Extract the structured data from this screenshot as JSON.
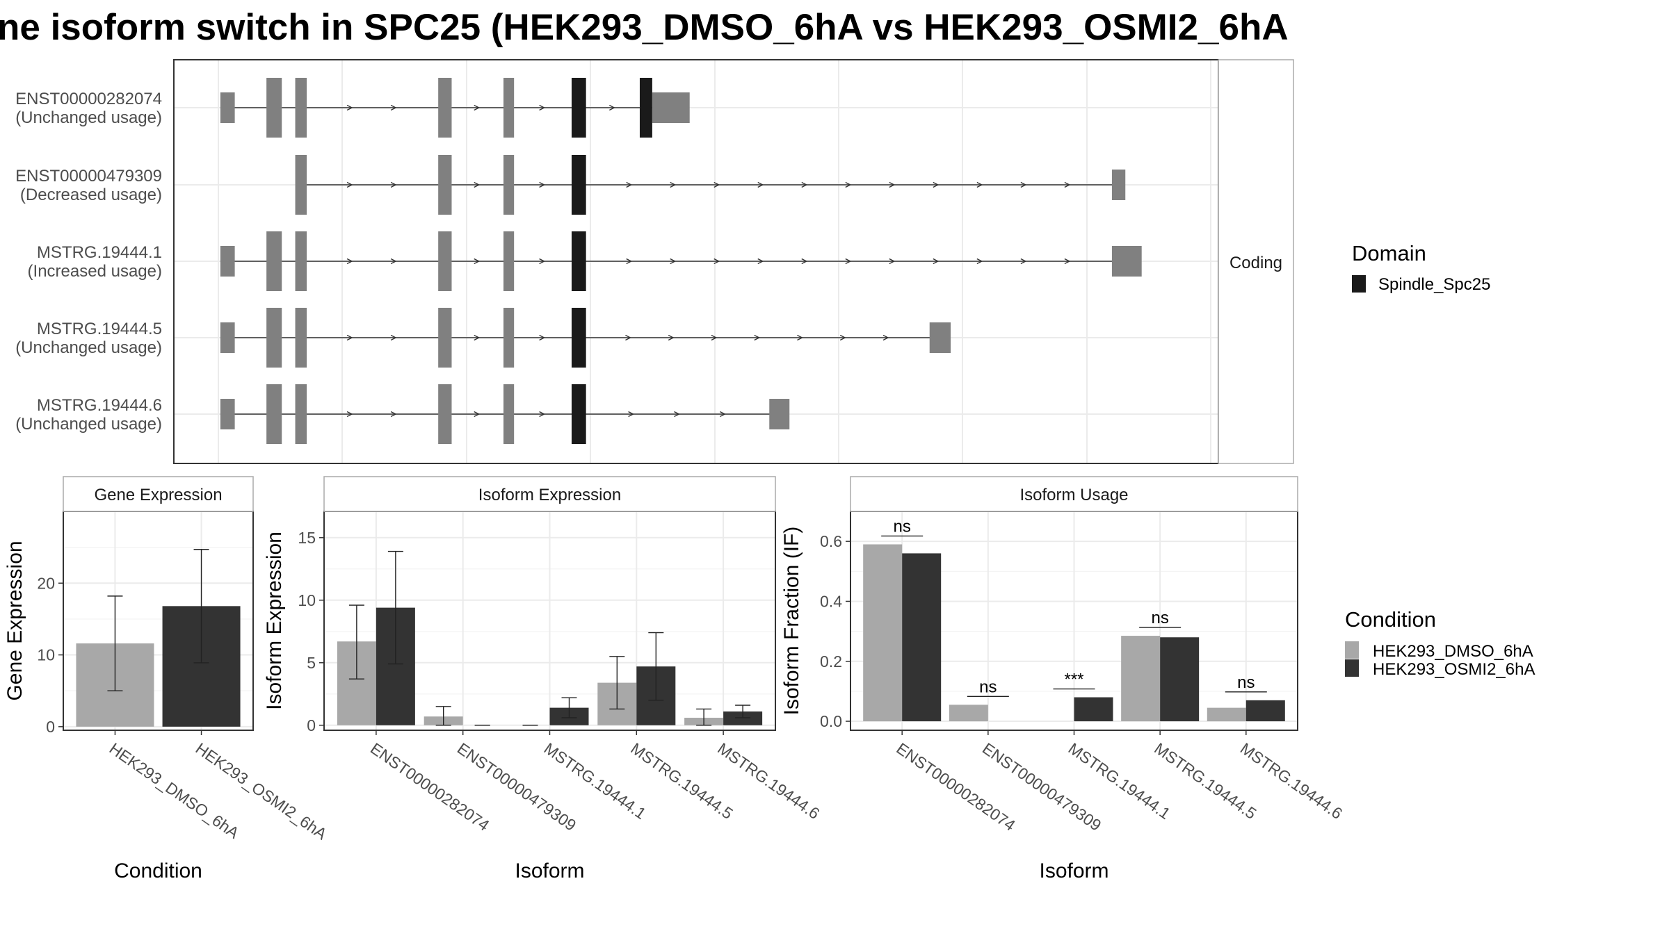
{
  "title": "ne isoform switch in SPC25 (HEK293_DMSO_6hA vs HEK293_OSMI2_6hA",
  "colors": {
    "dmso": "#a8a8a8",
    "osmi": "#333333",
    "exon": "#808080",
    "domain": "#1a1a1a",
    "grid": "#ebebeb",
    "panel_border": "#333333",
    "strip_border": "#aaaaaa"
  },
  "legends": {
    "domain": {
      "title": "Domain",
      "items": [
        {
          "label": "Spindle_Spc25",
          "color": "#1a1a1a"
        }
      ]
    },
    "condition": {
      "title": "Condition",
      "items": [
        {
          "label": "HEK293_DMSO_6hA",
          "color": "#a8a8a8"
        },
        {
          "label": "HEK293_OSMI2_6hA",
          "color": "#333333"
        }
      ]
    }
  },
  "chart_data": [
    {
      "type": "gene-structure",
      "facet_label": "Coding",
      "coordinate_units": "relative genomic position",
      "xlim": [
        0,
        100
      ],
      "transcripts": [
        {
          "id": "ENST00000282074",
          "status": "(Unchanged usage)",
          "line": [
            0.5,
            47
          ],
          "exons": [
            {
              "s": 0.5,
              "e": 2,
              "h": "s"
            },
            {
              "s": 5.3,
              "e": 6.9,
              "h": "l"
            },
            {
              "s": 8.3,
              "e": 9.5,
              "h": "l"
            },
            {
              "s": 23.2,
              "e": 24.6,
              "h": "l"
            },
            {
              "s": 30.0,
              "e": 31.1,
              "h": "l"
            },
            {
              "s": 37.1,
              "e": 38.6,
              "h": "l",
              "domain": true
            },
            {
              "s": 44.2,
              "e": 45.5,
              "h": "l",
              "domain": true
            },
            {
              "s": 45.5,
              "e": 49.4,
              "h": "s"
            }
          ]
        },
        {
          "id": "ENST00000479309",
          "status": "(Decreased usage)",
          "line": [
            8.5,
            93.5
          ],
          "exons": [
            {
              "s": 8.3,
              "e": 9.5,
              "h": "l"
            },
            {
              "s": 23.2,
              "e": 24.6,
              "h": "l"
            },
            {
              "s": 30.0,
              "e": 31.1,
              "h": "l"
            },
            {
              "s": 37.1,
              "e": 38.6,
              "h": "l",
              "domain": true
            },
            {
              "s": 93.4,
              "e": 94.8,
              "h": "s"
            }
          ]
        },
        {
          "id": "MSTRG.19444.1",
          "status": "(Increased usage)",
          "line": [
            0.5,
            93.5
          ],
          "exons": [
            {
              "s": 0.5,
              "e": 2,
              "h": "s"
            },
            {
              "s": 5.3,
              "e": 6.9,
              "h": "l"
            },
            {
              "s": 8.3,
              "e": 9.5,
              "h": "l"
            },
            {
              "s": 23.2,
              "e": 24.6,
              "h": "l"
            },
            {
              "s": 30.0,
              "e": 31.1,
              "h": "l"
            },
            {
              "s": 37.1,
              "e": 38.6,
              "h": "l",
              "domain": true
            },
            {
              "s": 93.4,
              "e": 96.5,
              "h": "s"
            }
          ]
        },
        {
          "id": "MSTRG.19444.5",
          "status": "(Unchanged usage)",
          "line": [
            0.5,
            74.5
          ],
          "exons": [
            {
              "s": 0.5,
              "e": 2,
              "h": "s"
            },
            {
              "s": 5.3,
              "e": 6.9,
              "h": "l"
            },
            {
              "s": 8.3,
              "e": 9.5,
              "h": "l"
            },
            {
              "s": 23.2,
              "e": 24.6,
              "h": "l"
            },
            {
              "s": 30.0,
              "e": 31.1,
              "h": "l"
            },
            {
              "s": 37.1,
              "e": 38.6,
              "h": "l",
              "domain": true
            },
            {
              "s": 74.4,
              "e": 76.6,
              "h": "s"
            }
          ]
        },
        {
          "id": "MSTRG.19444.6",
          "status": "(Unchanged usage)",
          "line": [
            0.5,
            57.8
          ],
          "exons": [
            {
              "s": 0.5,
              "e": 2,
              "h": "s"
            },
            {
              "s": 5.3,
              "e": 6.9,
              "h": "l"
            },
            {
              "s": 8.3,
              "e": 9.5,
              "h": "l"
            },
            {
              "s": 23.2,
              "e": 24.6,
              "h": "l"
            },
            {
              "s": 30.0,
              "e": 31.1,
              "h": "l"
            },
            {
              "s": 37.1,
              "e": 38.6,
              "h": "l",
              "domain": true
            },
            {
              "s": 57.7,
              "e": 59.8,
              "h": "s"
            }
          ]
        }
      ]
    },
    {
      "type": "bar",
      "facet_label": "Gene Expression",
      "xlabel": "Condition",
      "ylabel": "Gene Expression",
      "ylim": [
        -0.5,
        30
      ],
      "yticks": [
        0,
        10,
        20
      ],
      "categories": [
        "HEK293_DMSO_6hA",
        "HEK293_OSMI2_6hA"
      ],
      "series": [
        {
          "values": [
            11.6,
            16.8
          ],
          "err_low": [
            5.0,
            8.9
          ],
          "err_high": [
            18.2,
            24.7
          ]
        }
      ]
    },
    {
      "type": "bar",
      "facet_label": "Isoform Expression",
      "xlabel": "Isoform",
      "ylabel": "Isoform Expression",
      "ylim": [
        -0.4,
        17.1
      ],
      "yticks": [
        0,
        5,
        10,
        15
      ],
      "categories": [
        "ENST00000282074",
        "ENST00000479309",
        "MSTRG.19444.1",
        "MSTRG.19444.5",
        "MSTRG.19444.6"
      ],
      "series": [
        {
          "name": "HEK293_DMSO_6hA",
          "values": [
            6.7,
            0.7,
            0.0,
            3.4,
            0.6
          ],
          "err_low": [
            3.7,
            0.0,
            0.0,
            1.3,
            0.0
          ],
          "err_high": [
            9.6,
            1.5,
            0.0,
            5.5,
            1.3
          ]
        },
        {
          "name": "HEK293_OSMI2_6hA",
          "values": [
            9.4,
            0.0,
            1.4,
            4.7,
            1.1
          ],
          "err_low": [
            4.9,
            0.0,
            0.6,
            2.0,
            0.6
          ],
          "err_high": [
            13.9,
            0.0,
            2.2,
            7.4,
            1.6
          ]
        }
      ]
    },
    {
      "type": "bar",
      "facet_label": "Isoform Usage",
      "xlabel": "Isoform",
      "ylabel": "Isoform Fraction (IF)",
      "ylim": [
        -0.03,
        0.7
      ],
      "yticks": [
        0.0,
        0.2,
        0.4,
        0.6
      ],
      "ytick_labels": [
        "0.0",
        "0.2",
        "0.4",
        "0.6"
      ],
      "categories": [
        "ENST00000282074",
        "ENST00000479309",
        "MSTRG.19444.1",
        "MSTRG.19444.5",
        "MSTRG.19444.6"
      ],
      "series": [
        {
          "name": "HEK293_DMSO_6hA",
          "values": [
            0.59,
            0.055,
            0.0,
            0.285,
            0.045
          ]
        },
        {
          "name": "HEK293_OSMI2_6hA",
          "values": [
            0.56,
            0.0,
            0.08,
            0.28,
            0.07
          ]
        }
      ],
      "significance": [
        "ns",
        "ns",
        "***",
        "ns",
        "ns"
      ]
    }
  ]
}
